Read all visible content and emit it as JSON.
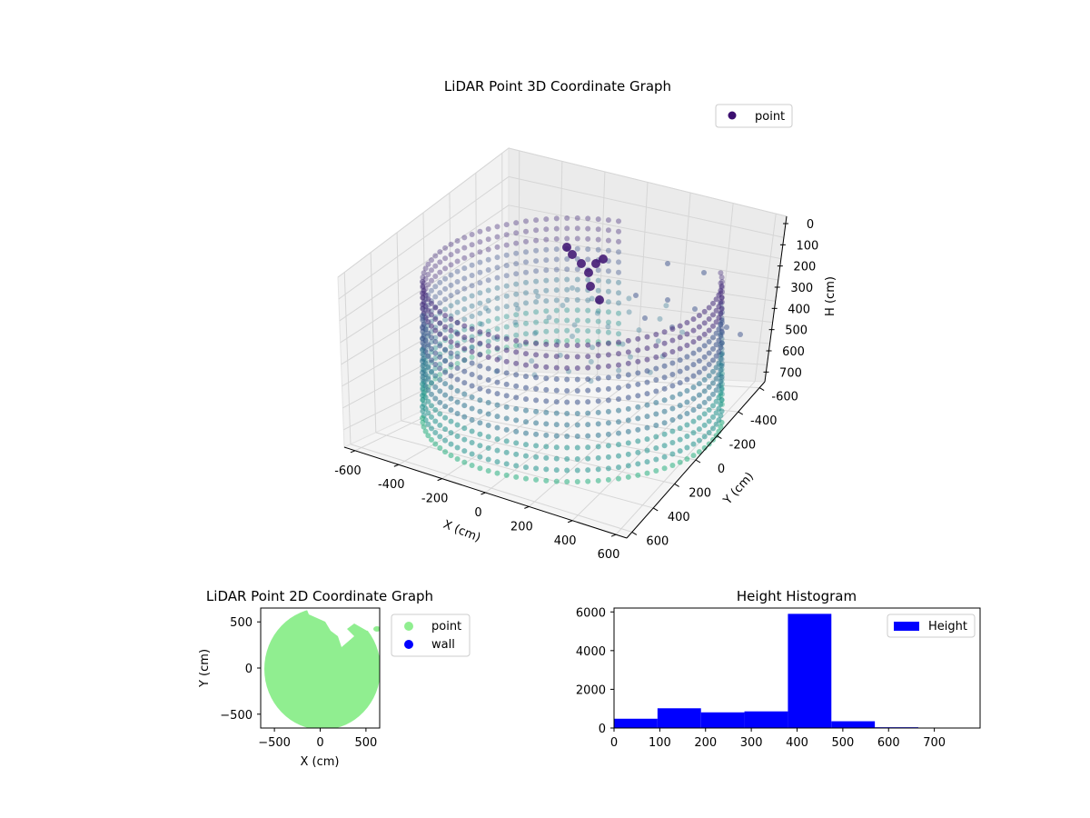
{
  "chart_data": [
    {
      "type": "scatter",
      "projection": "3d",
      "title": "LiDAR Point 3D Coordinate Graph",
      "xlabel": "X (cm)",
      "ylabel": "Y (cm)",
      "zlabel": "H (cm)",
      "xticks": [
        -600,
        -400,
        -200,
        0,
        200,
        400,
        600
      ],
      "yticks": [
        -600,
        -400,
        -200,
        0,
        200,
        400,
        600
      ],
      "zticks": [
        0,
        100,
        200,
        300,
        400,
        500,
        600,
        700
      ],
      "zlim": [
        780,
        0
      ],
      "legend": {
        "position": "top-right",
        "entries": [
          {
            "name": "point",
            "color": "#3b0f6f"
          }
        ]
      },
      "colormap": "viridis",
      "structure": "cylindrical wall of points, radius ~620 cm, heights 0-780 cm, open sector at the far side, plus a cluster of points near (150, 470)"
    },
    {
      "type": "scatter",
      "title": "LiDAR Point 2D Coordinate Graph",
      "xlabel": "X (cm)",
      "ylabel": "Y (cm)",
      "xticks": [
        -500,
        0,
        500
      ],
      "yticks": [
        -500,
        0,
        500
      ],
      "xlim": [
        -650,
        650
      ],
      "ylim": [
        -650,
        650
      ],
      "legend": {
        "position": "outside-right",
        "entries": [
          {
            "name": "point",
            "color": "#90ee90"
          },
          {
            "name": "wall",
            "color": "#0000ff"
          }
        ]
      }
    },
    {
      "type": "bar",
      "histogram": true,
      "title": "Height Histogram",
      "bin_edges": [
        0,
        95,
        190,
        285,
        380,
        475,
        570,
        665,
        760
      ],
      "values": [
        480,
        1020,
        810,
        860,
        5900,
        350,
        40,
        10
      ],
      "xticks": [
        0,
        100,
        200,
        300,
        400,
        500,
        600,
        700
      ],
      "yticks": [
        0,
        2000,
        4000,
        6000
      ],
      "xlim": [
        0,
        800
      ],
      "ylim": [
        0,
        6200
      ],
      "color": "#0000ff",
      "legend": {
        "position": "top-right",
        "entries": [
          {
            "name": "Height",
            "color": "#0000ff"
          }
        ]
      }
    }
  ]
}
